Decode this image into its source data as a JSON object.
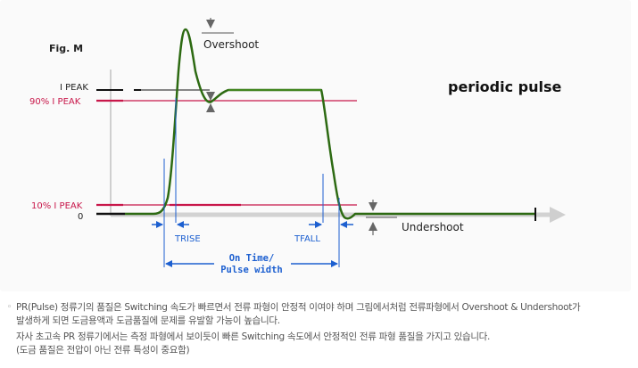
{
  "figure": {
    "fig_label": "Fig. M",
    "title": "periodic pulse",
    "labels": {
      "peak": "I PEAK",
      "p90": "90% I PEAK",
      "p10": "10% I PEAK",
      "zero": "0",
      "overshoot": "Overshoot",
      "undershoot": "Undershoot",
      "trise": "TRISE",
      "tfall": "TFALL",
      "ontime_line1": "On Time/",
      "ontime_line2": "Pulse width"
    },
    "colors": {
      "waveform": "#2d6a12",
      "threshold": "#c8174a",
      "timing": "#1c5fd0",
      "axis": "#c9c9c9",
      "label": "#333333"
    }
  },
  "notes": {
    "bullet": "◦",
    "line1": "PR(Pulse) 정류기의 품질은 Switching 속도가 빠르면서 전류 파형이 안정적 이여야 하며 그림에서처럼 전류파형에서 Overshoot & Undershoot가",
    "line2": "발생하게 되면 도금용액과 도금품질에 문제를 유발할 가능이 높습니다.",
    "line3": "자사 초고속 PR 정류기에서는 측정 파형에서 보이듯이 빠른 Switching 속도에서 안정적인 전류 파형 품질을 가지고 있습니다.",
    "line4": "(도금 품질은 전압이 아닌 전류 특성이 중요함)"
  }
}
